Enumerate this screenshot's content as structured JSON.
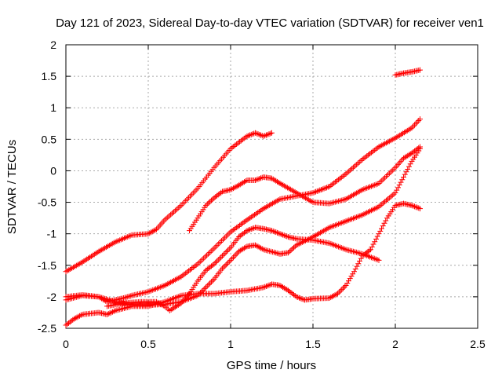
{
  "chart_data": {
    "type": "scatter",
    "title": "Day 121 of 2023, Sidereal Day-to-day VTEC variation (SDTVAR) for receiver ven1",
    "xlabel": "GPS time / hours",
    "ylabel": "SDTVAR / TECUs",
    "xlim": [
      0,
      2.5
    ],
    "ylim": [
      -2.5,
      2
    ],
    "x_ticks": [
      "0",
      "0.5",
      "1",
      "1.5",
      "2",
      "2.5"
    ],
    "y_ticks": [
      "-2.5",
      "-2",
      "-1.5",
      "-1",
      "-0.5",
      "0",
      "0.5",
      "1",
      "1.5",
      "2"
    ],
    "grid": true,
    "marker": "plus",
    "color": "#ff0000",
    "series": [
      {
        "points": [
          [
            0,
            -1.6
          ],
          [
            0.1,
            -1.45
          ],
          [
            0.2,
            -1.28
          ],
          [
            0.3,
            -1.13
          ],
          [
            0.4,
            -1.02
          ],
          [
            0.5,
            -1.0
          ],
          [
            0.55,
            -0.93
          ],
          [
            0.6,
            -0.78
          ],
          [
            0.7,
            -0.55
          ],
          [
            0.8,
            -0.28
          ],
          [
            0.9,
            0.05
          ],
          [
            1.0,
            0.35
          ],
          [
            1.1,
            0.55
          ],
          [
            1.15,
            0.6
          ],
          [
            1.2,
            0.55
          ],
          [
            1.25,
            0.6
          ]
        ]
      },
      {
        "points": [
          [
            0.75,
            -0.95
          ],
          [
            0.8,
            -0.75
          ],
          [
            0.85,
            -0.55
          ],
          [
            0.9,
            -0.43
          ],
          [
            0.95,
            -0.33
          ],
          [
            1.0,
            -0.3
          ],
          [
            1.05,
            -0.23
          ],
          [
            1.1,
            -0.15
          ],
          [
            1.15,
            -0.15
          ],
          [
            1.2,
            -0.1
          ],
          [
            1.25,
            -0.12
          ],
          [
            1.3,
            -0.2
          ],
          [
            1.4,
            -0.35
          ],
          [
            1.5,
            -0.5
          ],
          [
            1.6,
            -0.52
          ],
          [
            1.7,
            -0.45
          ],
          [
            1.8,
            -0.3
          ],
          [
            1.9,
            -0.2
          ],
          [
            2.0,
            0.05
          ],
          [
            2.05,
            0.2
          ],
          [
            2.1,
            0.28
          ],
          [
            2.15,
            0.38
          ]
        ]
      },
      {
        "points": [
          [
            0,
            -2.45
          ],
          [
            0.05,
            -2.35
          ],
          [
            0.1,
            -2.28
          ],
          [
            0.2,
            -2.25
          ],
          [
            0.25,
            -2.28
          ],
          [
            0.3,
            -2.22
          ],
          [
            0.4,
            -2.15
          ],
          [
            0.5,
            -2.15
          ],
          [
            0.6,
            -2.08
          ],
          [
            0.7,
            -1.98
          ],
          [
            0.8,
            -1.95
          ],
          [
            0.9,
            -1.95
          ],
          [
            1.0,
            -1.92
          ],
          [
            1.1,
            -1.9
          ],
          [
            1.2,
            -1.85
          ],
          [
            1.25,
            -1.8
          ],
          [
            1.3,
            -1.82
          ],
          [
            1.35,
            -1.9
          ],
          [
            1.4,
            -2.0
          ],
          [
            1.45,
            -2.05
          ],
          [
            1.5,
            -2.03
          ],
          [
            1.6,
            -2.02
          ],
          [
            1.65,
            -1.95
          ],
          [
            1.7,
            -1.82
          ],
          [
            1.75,
            -1.6
          ],
          [
            1.8,
            -1.35
          ],
          [
            1.85,
            -1.25
          ],
          [
            1.9,
            -1.0
          ],
          [
            1.95,
            -0.75
          ],
          [
            2.0,
            -0.55
          ],
          [
            2.05,
            -0.52
          ],
          [
            2.1,
            -0.55
          ],
          [
            2.15,
            -0.6
          ]
        ]
      },
      {
        "points": [
          [
            0,
            -2.05
          ],
          [
            0.1,
            -1.98
          ],
          [
            0.2,
            -2.0
          ],
          [
            0.3,
            -2.08
          ],
          [
            0.4,
            -2.13
          ],
          [
            0.5,
            -2.13
          ],
          [
            0.6,
            -2.12
          ],
          [
            0.7,
            -2.08
          ],
          [
            0.8,
            -1.98
          ],
          [
            0.85,
            -1.85
          ],
          [
            0.9,
            -1.72
          ],
          [
            0.95,
            -1.55
          ],
          [
            1.0,
            -1.42
          ],
          [
            1.05,
            -1.28
          ],
          [
            1.1,
            -1.2
          ],
          [
            1.15,
            -1.18
          ],
          [
            1.2,
            -1.25
          ],
          [
            1.3,
            -1.32
          ],
          [
            1.35,
            -1.3
          ],
          [
            1.4,
            -1.18
          ],
          [
            1.5,
            -1.05
          ],
          [
            1.6,
            -0.9
          ],
          [
            1.7,
            -0.8
          ],
          [
            1.8,
            -0.7
          ],
          [
            1.9,
            -0.57
          ],
          [
            2.0,
            -0.35
          ],
          [
            2.05,
            -0.1
          ],
          [
            2.1,
            0.15
          ],
          [
            2.15,
            0.35
          ]
        ]
      },
      {
        "points": [
          [
            0,
            -2.0
          ],
          [
            0.1,
            -1.97
          ],
          [
            0.2,
            -2.0
          ],
          [
            0.25,
            -2.08
          ],
          [
            0.3,
            -2.05
          ],
          [
            0.35,
            -2.02
          ],
          [
            0.4,
            -1.98
          ],
          [
            0.5,
            -1.92
          ],
          [
            0.6,
            -1.82
          ],
          [
            0.7,
            -1.68
          ],
          [
            0.8,
            -1.48
          ],
          [
            0.9,
            -1.23
          ],
          [
            1.0,
            -0.97
          ],
          [
            1.1,
            -0.78
          ],
          [
            1.2,
            -0.6
          ],
          [
            1.3,
            -0.45
          ],
          [
            1.4,
            -0.4
          ],
          [
            1.5,
            -0.35
          ],
          [
            1.55,
            -0.3
          ],
          [
            1.6,
            -0.25
          ],
          [
            1.7,
            -0.05
          ],
          [
            1.8,
            0.18
          ],
          [
            1.9,
            0.38
          ],
          [
            2.0,
            0.52
          ],
          [
            2.1,
            0.68
          ],
          [
            2.15,
            0.82
          ]
        ]
      },
      {
        "points": [
          [
            0.25,
            -2.15
          ],
          [
            0.35,
            -2.1
          ],
          [
            0.45,
            -2.08
          ],
          [
            0.55,
            -2.08
          ],
          [
            0.6,
            -2.15
          ],
          [
            0.63,
            -2.22
          ],
          [
            0.7,
            -2.1
          ],
          [
            0.75,
            -1.95
          ],
          [
            0.8,
            -1.75
          ],
          [
            0.85,
            -1.58
          ],
          [
            0.9,
            -1.48
          ],
          [
            0.95,
            -1.35
          ],
          [
            1.0,
            -1.22
          ],
          [
            1.05,
            -1.05
          ],
          [
            1.1,
            -0.95
          ],
          [
            1.15,
            -0.9
          ],
          [
            1.2,
            -0.92
          ],
          [
            1.25,
            -0.95
          ],
          [
            1.3,
            -1.0
          ],
          [
            1.35,
            -1.05
          ],
          [
            1.4,
            -1.08
          ],
          [
            1.5,
            -1.1
          ],
          [
            1.6,
            -1.15
          ],
          [
            1.7,
            -1.25
          ],
          [
            1.8,
            -1.32
          ],
          [
            1.9,
            -1.42
          ]
        ]
      },
      {
        "points": [
          [
            2.0,
            1.52
          ],
          [
            2.05,
            1.55
          ],
          [
            2.1,
            1.57
          ],
          [
            2.15,
            1.6
          ]
        ]
      }
    ]
  }
}
